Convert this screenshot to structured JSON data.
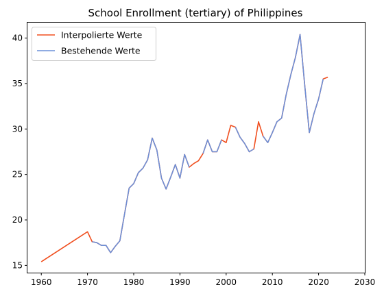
{
  "chart_data": {
    "type": "line",
    "title": "School Enrollment (tertiary) of Philippines",
    "xlabel": "",
    "ylabel": "",
    "xlim": [
      1957,
      2030
    ],
    "ylim": [
      14.2,
      41.7
    ],
    "xticks": [
      1960,
      1970,
      1980,
      1990,
      2000,
      2010,
      2020,
      2030
    ],
    "yticks": [
      15,
      20,
      25,
      30,
      35,
      40
    ],
    "grid": false,
    "legend_position": "upper left",
    "series": [
      {
        "name": "Interpolierte Werte",
        "color": "#f04e1e",
        "points": [
          [
            1960,
            15.4
          ],
          [
            1970,
            18.7
          ],
          [
            1971,
            17.6
          ],
          [
            1972,
            17.5
          ],
          [
            1973,
            17.2
          ],
          [
            1974,
            17.2
          ],
          [
            1975,
            16.4
          ],
          [
            1976,
            17.1
          ],
          [
            1977,
            17.7
          ],
          [
            1978,
            20.6
          ],
          [
            1979,
            23.5
          ],
          [
            1980,
            24.0
          ],
          [
            1981,
            25.2
          ],
          [
            1982,
            25.7
          ],
          [
            1983,
            26.6
          ],
          [
            1984,
            29.0
          ],
          [
            1985,
            27.7
          ],
          [
            1986,
            24.6
          ],
          [
            1987,
            23.4
          ],
          [
            1988,
            24.7
          ],
          [
            1989,
            26.1
          ],
          [
            1990,
            24.6
          ],
          [
            1991,
            27.2
          ],
          [
            1992,
            25.8
          ],
          [
            1993,
            26.2
          ],
          [
            1994,
            26.5
          ],
          [
            1995,
            27.3
          ],
          [
            1996,
            28.8
          ],
          [
            1997,
            27.5
          ],
          [
            1998,
            27.5
          ],
          [
            1999,
            28.8
          ],
          [
            2000,
            28.5
          ],
          [
            2001,
            30.4
          ],
          [
            2002,
            30.2
          ],
          [
            2003,
            29.1
          ],
          [
            2004,
            28.4
          ],
          [
            2005,
            27.5
          ],
          [
            2006,
            27.8
          ],
          [
            2007,
            30.8
          ],
          [
            2008,
            29.2
          ],
          [
            2009,
            28.5
          ],
          [
            2010,
            29.6
          ],
          [
            2011,
            30.8
          ],
          [
            2012,
            31.2
          ],
          [
            2013,
            33.8
          ],
          [
            2014,
            36.0
          ],
          [
            2015,
            37.9
          ],
          [
            2016,
            40.4
          ],
          [
            2017,
            34.8
          ],
          [
            2018,
            29.6
          ],
          [
            2019,
            31.7
          ],
          [
            2020,
            33.3
          ],
          [
            2021,
            35.5
          ],
          [
            2022,
            35.7
          ]
        ]
      },
      {
        "name": "Bestehende Werte",
        "color": "#6c90d8",
        "segments": [
          [
            [
              1971,
              17.6
            ],
            [
              1972,
              17.5
            ],
            [
              1973,
              17.2
            ],
            [
              1974,
              17.2
            ],
            [
              1975,
              16.4
            ],
            [
              1976,
              17.1
            ],
            [
              1977,
              17.7
            ],
            [
              1978,
              20.6
            ],
            [
              1979,
              23.5
            ],
            [
              1980,
              24.0
            ],
            [
              1981,
              25.2
            ],
            [
              1982,
              25.7
            ],
            [
              1983,
              26.6
            ],
            [
              1984,
              29.0
            ],
            [
              1985,
              27.7
            ],
            [
              1986,
              24.6
            ],
            [
              1987,
              23.4
            ],
            [
              1988,
              24.7
            ],
            [
              1989,
              26.1
            ],
            [
              1990,
              24.6
            ],
            [
              1991,
              27.2
            ],
            [
              1992,
              25.8
            ]
          ],
          [
            [
              1995,
              27.3
            ],
            [
              1996,
              28.8
            ],
            [
              1997,
              27.5
            ],
            [
              1998,
              27.5
            ],
            [
              1999,
              28.8
            ]
          ],
          [
            [
              2002,
              30.2
            ],
            [
              2003,
              29.1
            ],
            [
              2004,
              28.4
            ],
            [
              2005,
              27.5
            ],
            [
              2006,
              27.8
            ]
          ],
          [
            [
              2008,
              29.2
            ],
            [
              2009,
              28.5
            ],
            [
              2010,
              29.6
            ],
            [
              2011,
              30.8
            ],
            [
              2012,
              31.2
            ],
            [
              2013,
              33.8
            ],
            [
              2014,
              36.0
            ],
            [
              2015,
              37.9
            ],
            [
              2016,
              40.4
            ],
            [
              2017,
              34.8
            ],
            [
              2018,
              29.6
            ],
            [
              2019,
              31.7
            ],
            [
              2020,
              33.3
            ],
            [
              2021,
              35.5
            ]
          ]
        ]
      }
    ]
  }
}
